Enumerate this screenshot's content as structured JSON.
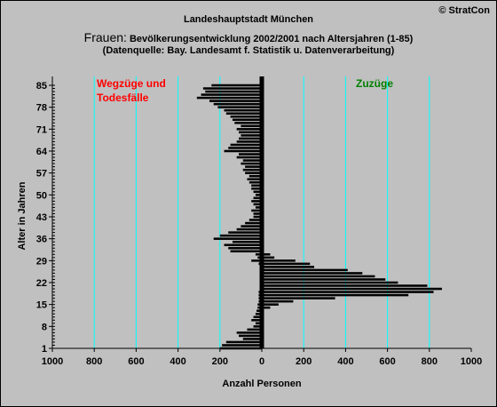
{
  "header": {
    "title": "Landeshauptstadt München",
    "subtitle_lead": "Frauen:",
    "subtitle_rest": " Bevölkerungsentwicklung 2002/2001 nach Altersjahren (1-85)",
    "source": "(Datenquelle: Bay. Landesamt f. Statistik u. Datenverarbeitung)",
    "copyright": "© StratCon"
  },
  "colors": {
    "background": "#c0c0c0",
    "gridline": "#00ffff",
    "bars": "#000000",
    "label_left": "#ff0000",
    "label_right": "#008000"
  },
  "chart_data": {
    "type": "bar",
    "orientation": "horizontal-butterfly",
    "title": "Frauen: Bevölkerungsentwicklung 2002/2001 nach Altersjahren (1-85)",
    "xlabel": "Anzahl Personen",
    "ylabel": "Alter in Jahren",
    "xlim": [
      -1000,
      1000
    ],
    "ylim": [
      1,
      85
    ],
    "x_tick_values": [
      -1000,
      -800,
      -600,
      -400,
      -200,
      0,
      200,
      400,
      600,
      800,
      1000
    ],
    "x_tick_labels": [
      "1000",
      "800",
      "600",
      "400",
      "200",
      "0",
      "200",
      "400",
      "600",
      "800",
      "1000"
    ],
    "y_ticks": [
      1,
      8,
      15,
      22,
      29,
      36,
      43,
      50,
      57,
      64,
      71,
      78,
      85
    ],
    "grid": "vertical",
    "annotation_left": [
      "Wegzüge und",
      "Todesfälle"
    ],
    "annotation_right": "Zuzüge",
    "ages": [
      1,
      2,
      3,
      4,
      5,
      6,
      7,
      8,
      9,
      10,
      11,
      12,
      13,
      14,
      15,
      16,
      17,
      18,
      19,
      20,
      21,
      22,
      23,
      24,
      25,
      26,
      27,
      28,
      29,
      30,
      31,
      32,
      33,
      34,
      35,
      36,
      37,
      38,
      39,
      40,
      41,
      42,
      43,
      44,
      45,
      46,
      47,
      48,
      49,
      50,
      51,
      52,
      53,
      54,
      55,
      56,
      57,
      58,
      59,
      60,
      61,
      62,
      63,
      64,
      65,
      66,
      67,
      68,
      69,
      70,
      71,
      72,
      73,
      74,
      75,
      76,
      77,
      78,
      79,
      80,
      81,
      82,
      83,
      84,
      85
    ],
    "series": [
      {
        "name": "Wegzüge und Todesfälle",
        "values": [
          -200,
          -190,
          -170,
          -90,
          -110,
          -120,
          -70,
          -40,
          -30,
          -50,
          -40,
          -30,
          -25,
          -20,
          -20,
          -15,
          -15,
          -15,
          -15,
          -10,
          -10,
          -10,
          -10,
          -10,
          -10,
          -10,
          -10,
          -15,
          -50,
          -20,
          -30,
          -150,
          -160,
          -180,
          -140,
          -230,
          -200,
          -160,
          -120,
          -100,
          -80,
          -60,
          -40,
          -40,
          -50,
          -30,
          -40,
          -50,
          -40,
          -30,
          -40,
          -50,
          -50,
          -60,
          -70,
          -60,
          -80,
          -90,
          -80,
          -100,
          -90,
          -120,
          -110,
          -180,
          -160,
          -150,
          -120,
          -110,
          -100,
          -110,
          -120,
          -100,
          -130,
          -140,
          -150,
          -170,
          -180,
          -210,
          -230,
          -250,
          -310,
          -290,
          -270,
          -280,
          -240
        ]
      },
      {
        "name": "Zuzüge",
        "values": [
          0,
          0,
          0,
          0,
          0,
          0,
          0,
          0,
          0,
          0,
          0,
          0,
          0,
          40,
          80,
          150,
          350,
          700,
          820,
          860,
          790,
          650,
          590,
          540,
          480,
          410,
          250,
          230,
          160,
          60,
          40,
          10,
          5,
          5,
          5,
          5,
          5,
          5,
          5,
          5,
          5,
          5,
          5,
          5,
          5,
          5,
          5,
          5,
          5,
          5,
          5,
          5,
          5,
          5,
          5,
          5,
          5,
          5,
          5,
          5,
          5,
          5,
          5,
          5,
          5,
          5,
          5,
          5,
          5,
          5,
          5,
          5,
          5,
          5,
          5,
          5,
          5,
          5,
          5,
          5,
          5,
          5,
          5,
          5,
          5
        ]
      }
    ]
  }
}
